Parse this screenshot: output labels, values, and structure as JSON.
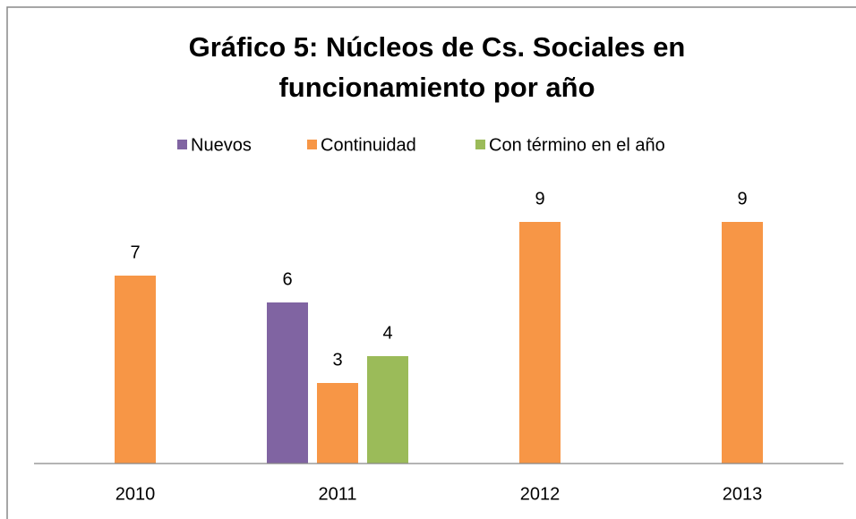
{
  "chart_data": {
    "type": "bar",
    "title": "Gráfico 5: Núcleos de Cs. Sociales en funcionamiento por año",
    "categories": [
      "2010",
      "2011",
      "2012",
      "2013"
    ],
    "series": [
      {
        "name": "Nuevos",
        "color": "#8064a2",
        "values": [
          null,
          6,
          null,
          null
        ]
      },
      {
        "name": "Continuidad",
        "color": "#f79646",
        "values": [
          7,
          3,
          9,
          9
        ]
      },
      {
        "name": "Con término en el año",
        "color": "#9bbb59",
        "values": [
          null,
          4,
          null,
          null
        ]
      }
    ],
    "ylim": [
      0,
      10
    ],
    "legend": "top"
  }
}
